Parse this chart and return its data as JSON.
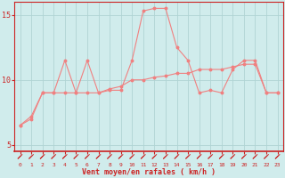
{
  "x": [
    0,
    1,
    2,
    3,
    4,
    5,
    6,
    7,
    8,
    9,
    10,
    11,
    12,
    13,
    14,
    15,
    16,
    17,
    18,
    19,
    20,
    21,
    22,
    23
  ],
  "y_rafales": [
    6.5,
    7.2,
    9.0,
    9.0,
    11.5,
    9.0,
    11.5,
    9.0,
    9.2,
    9.2,
    11.5,
    15.3,
    15.5,
    15.5,
    12.5,
    11.5,
    9.0,
    9.2,
    9.0,
    10.8,
    11.5,
    11.5,
    9.0,
    9.0
  ],
  "y_moyen": [
    6.5,
    7.0,
    9.0,
    9.0,
    9.0,
    9.0,
    9.0,
    9.0,
    9.3,
    9.5,
    10.0,
    10.0,
    10.2,
    10.3,
    10.5,
    10.5,
    10.8,
    10.8,
    10.8,
    11.0,
    11.2,
    11.2,
    9.0,
    9.0
  ],
  "bg_color": "#d0ecec",
  "line_color": "#f08080",
  "grid_color": "#b0d4d4",
  "text_color": "#cc2222",
  "xlabel": "Vent moyen/en rafales ( km/h )",
  "ylim_min": 4.5,
  "ylim_max": 16.0,
  "yticks": [
    5,
    10,
    15
  ],
  "xticks": [
    0,
    1,
    2,
    3,
    4,
    5,
    6,
    7,
    8,
    9,
    10,
    11,
    12,
    13,
    14,
    15,
    16,
    17,
    18,
    19,
    20,
    21,
    22,
    23
  ]
}
